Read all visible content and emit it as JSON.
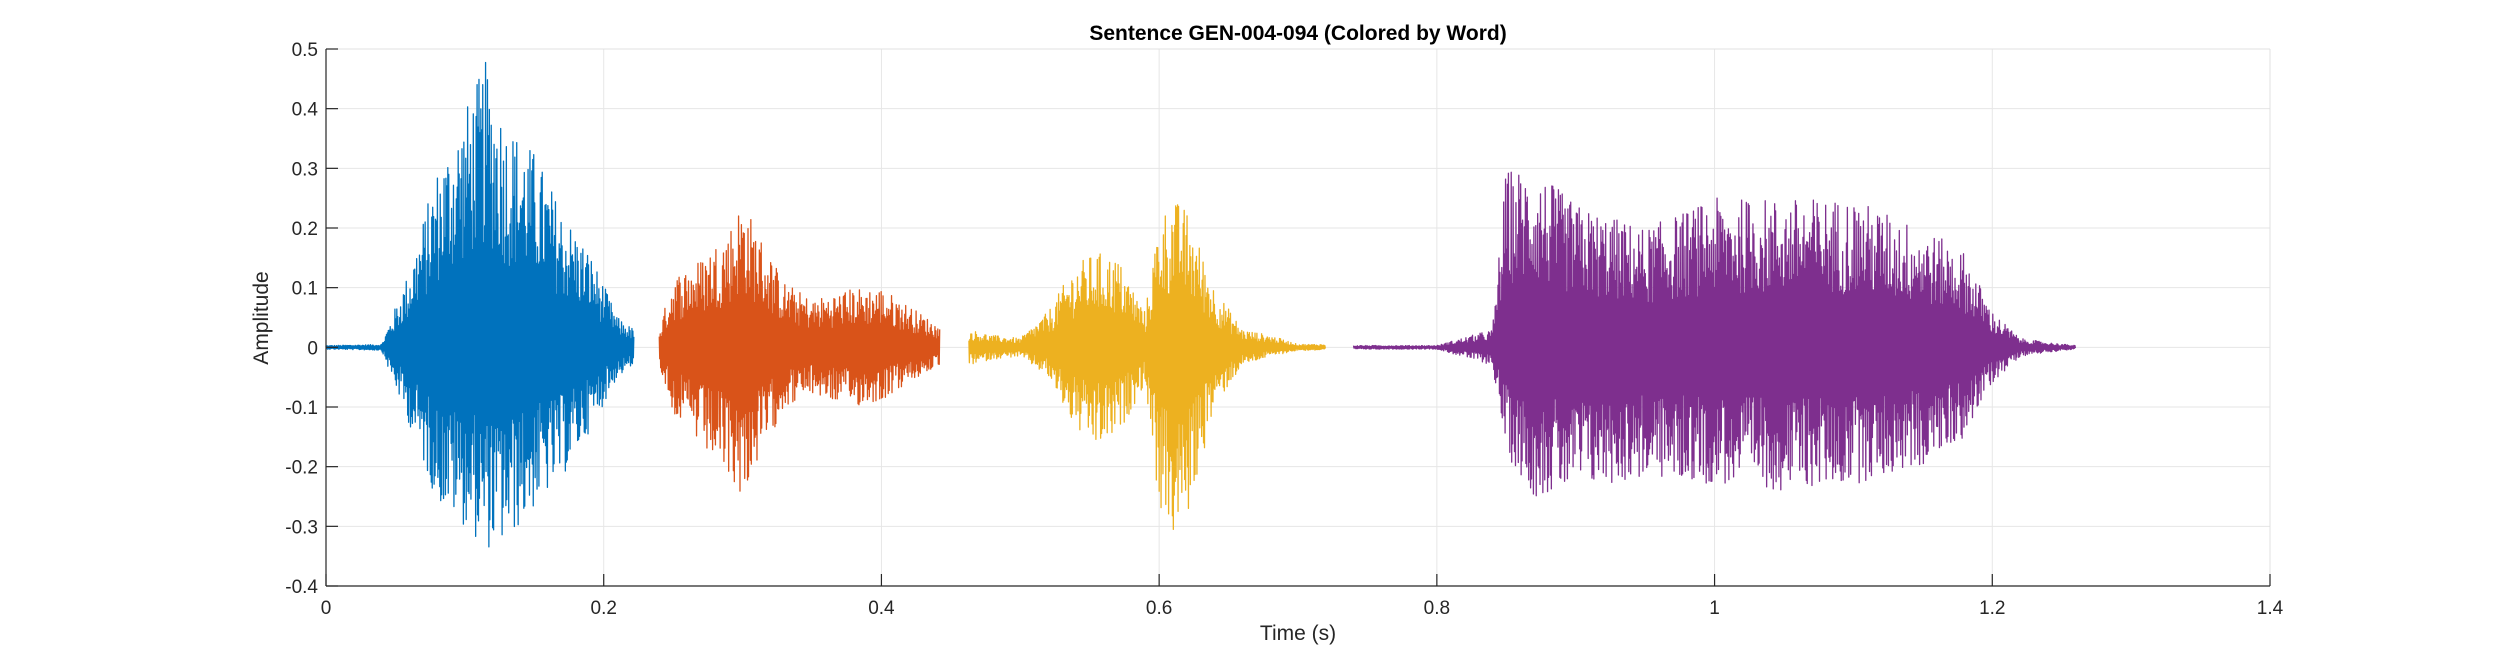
{
  "chart_data": {
    "type": "line",
    "title": "Sentence GEN-004-094 (Colored by Word)",
    "xlabel": "Time (s)",
    "ylabel": "Amplitude",
    "xlim": [
      0,
      1.4
    ],
    "ylim": [
      -0.4,
      0.5
    ],
    "xticks": [
      0,
      0.2,
      0.4,
      0.6,
      0.8,
      1,
      1.2,
      1.4
    ],
    "xtick_labels": [
      "0",
      "0.2",
      "0.4",
      "0.6",
      "0.8",
      "1",
      "1.2",
      "1.4"
    ],
    "yticks": [
      -0.4,
      -0.3,
      -0.2,
      -0.1,
      0,
      0.1,
      0.2,
      0.3,
      0.4,
      0.5
    ],
    "ytick_labels": [
      "-0.4",
      "-0.3",
      "-0.2",
      "-0.1",
      "0",
      "0.1",
      "0.2",
      "0.3",
      "0.4",
      "0.5"
    ],
    "grid": true,
    "series": [
      {
        "color": "#0072BD",
        "x": [
          0.0,
          0.04,
          0.06,
          0.08,
          0.1,
          0.115,
          0.13,
          0.15,
          0.17,
          0.19,
          0.21,
          0.222
        ],
        "pos": [
          0.003,
          0.005,
          0.13,
          0.3,
          0.4,
          0.48,
          0.38,
          0.33,
          0.23,
          0.16,
          0.05,
          0.03
        ],
        "neg": [
          -0.003,
          -0.005,
          -0.13,
          -0.26,
          -0.3,
          -0.34,
          -0.33,
          -0.27,
          -0.22,
          -0.14,
          -0.05,
          -0.03
        ]
      },
      {
        "color": "#D95319",
        "x": [
          0.24,
          0.25,
          0.27,
          0.29,
          0.3,
          0.31,
          0.33,
          0.35,
          0.38,
          0.4,
          0.42,
          0.442
        ],
        "pos": [
          0.03,
          0.12,
          0.15,
          0.2,
          0.25,
          0.2,
          0.11,
          0.08,
          0.1,
          0.1,
          0.07,
          0.035
        ],
        "neg": [
          -0.03,
          -0.11,
          -0.17,
          -0.22,
          -0.25,
          -0.2,
          -0.1,
          -0.08,
          -0.1,
          -0.09,
          -0.06,
          -0.03
        ]
      },
      {
        "color": "#EDB120",
        "x": [
          0.463,
          0.48,
          0.5,
          0.52,
          0.54,
          0.555,
          0.57,
          0.59,
          0.6,
          0.61,
          0.62,
          0.64,
          0.66,
          0.68,
          0.7,
          0.72
        ],
        "pos": [
          0.03,
          0.02,
          0.015,
          0.06,
          0.14,
          0.16,
          0.15,
          0.06,
          0.22,
          0.25,
          0.23,
          0.1,
          0.03,
          0.02,
          0.005,
          0.005
        ],
        "neg": [
          -0.03,
          -0.02,
          -0.015,
          -0.05,
          -0.14,
          -0.17,
          -0.15,
          -0.06,
          -0.27,
          -0.32,
          -0.29,
          -0.1,
          -0.03,
          -0.015,
          -0.005,
          -0.005
        ]
      },
      {
        "color": "#7E2F8E",
        "x": [
          0.74,
          0.8,
          0.84,
          0.85,
          0.87,
          0.9,
          0.95,
          1.0,
          1.05,
          1.1,
          1.15,
          1.18,
          1.2,
          1.22,
          1.24,
          1.26
        ],
        "pos": [
          0.003,
          0.003,
          0.03,
          0.3,
          0.3,
          0.24,
          0.2,
          0.25,
          0.25,
          0.25,
          0.2,
          0.16,
          0.06,
          0.015,
          0.008,
          0.003
        ],
        "neg": [
          -0.003,
          -0.003,
          -0.03,
          -0.18,
          -0.25,
          -0.24,
          -0.22,
          -0.23,
          -0.24,
          -0.23,
          -0.2,
          -0.15,
          -0.06,
          -0.015,
          -0.008,
          -0.003
        ]
      }
    ]
  }
}
